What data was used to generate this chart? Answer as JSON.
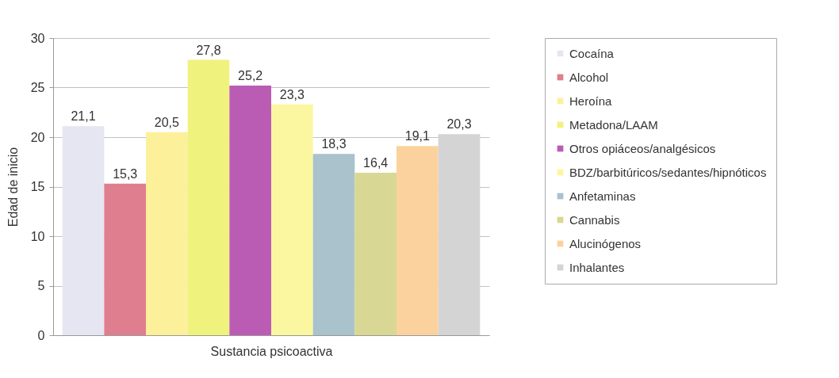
{
  "chart_data": {
    "type": "bar",
    "xlabel": "Sustancia psicoactiva",
    "ylabel": "Edad de inicio",
    "categories": [
      null
    ],
    "series": [
      {
        "name": "Cocaína",
        "color": "#e6e6f2",
        "values": [
          21.1
        ],
        "value_labels": [
          "21,1"
        ]
      },
      {
        "name": "Alcohol",
        "color": "#df7e8e",
        "values": [
          15.3
        ],
        "value_labels": [
          "15,3"
        ]
      },
      {
        "name": "Heroína",
        "color": "#fdf09a",
        "values": [
          20.5
        ],
        "value_labels": [
          "20,5"
        ]
      },
      {
        "name": "Metadona/LAAM",
        "color": "#f0f27e",
        "values": [
          27.8
        ],
        "value_labels": [
          "27,8"
        ]
      },
      {
        "name": "Otros opiáceos/analgésicos",
        "color": "#bb5cb4",
        "values": [
          25.2
        ],
        "value_labels": [
          "25,2"
        ]
      },
      {
        "name": "BDZ/barbitúricos/sedantes/hipnóticos",
        "color": "#fbf7a0",
        "values": [
          23.3
        ],
        "value_labels": [
          "23,3"
        ]
      },
      {
        "name": "Anfetaminas",
        "color": "#a9c2cc",
        "values": [
          18.3
        ],
        "value_labels": [
          "18,3"
        ]
      },
      {
        "name": "Cannabis",
        "color": "#d8d894",
        "values": [
          16.4
        ],
        "value_labels": [
          "16,4"
        ]
      },
      {
        "name": "Alucinógenos",
        "color": "#fbd29e",
        "values": [
          19.1
        ],
        "value_labels": [
          "19,1"
        ]
      },
      {
        "name": "Inhalantes",
        "color": "#d4d4d4",
        "values": [
          20.3
        ],
        "value_labels": [
          "20,3"
        ]
      }
    ],
    "ylim": [
      0,
      30
    ],
    "yticks": [
      0,
      5,
      10,
      15,
      20,
      25,
      30
    ],
    "grid": "y",
    "legend": "right"
  }
}
